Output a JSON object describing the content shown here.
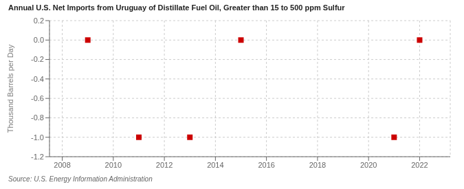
{
  "chart_data": {
    "type": "scatter",
    "title": "Annual U.S. Net Imports from Uruguay of Distillate Fuel Oil, Greater than 15 to 500 ppm Sulfur",
    "ylabel": "Thousand Barrels per Day",
    "annotations": [
      "Source: U.S. Energy Information Administration"
    ],
    "x": [
      2009,
      2011,
      2013,
      2015,
      2021,
      2022
    ],
    "values": [
      0,
      -1,
      -1,
      0,
      -1,
      0
    ],
    "color": "#cc0000",
    "marker": "square",
    "xlim": [
      2007.5,
      2023.2
    ],
    "ylim": [
      -1.2,
      0.2
    ],
    "xticks": [
      2008,
      2010,
      2012,
      2014,
      2016,
      2018,
      2020,
      2022
    ],
    "yticks": [
      0.2,
      {
        "value": 0,
        "label": "0.0"
      },
      -0.2,
      -0.4,
      -0.6,
      -0.8,
      {
        "value": -1,
        "label": "-1.0"
      },
      -1.2
    ],
    "grid": true
  }
}
